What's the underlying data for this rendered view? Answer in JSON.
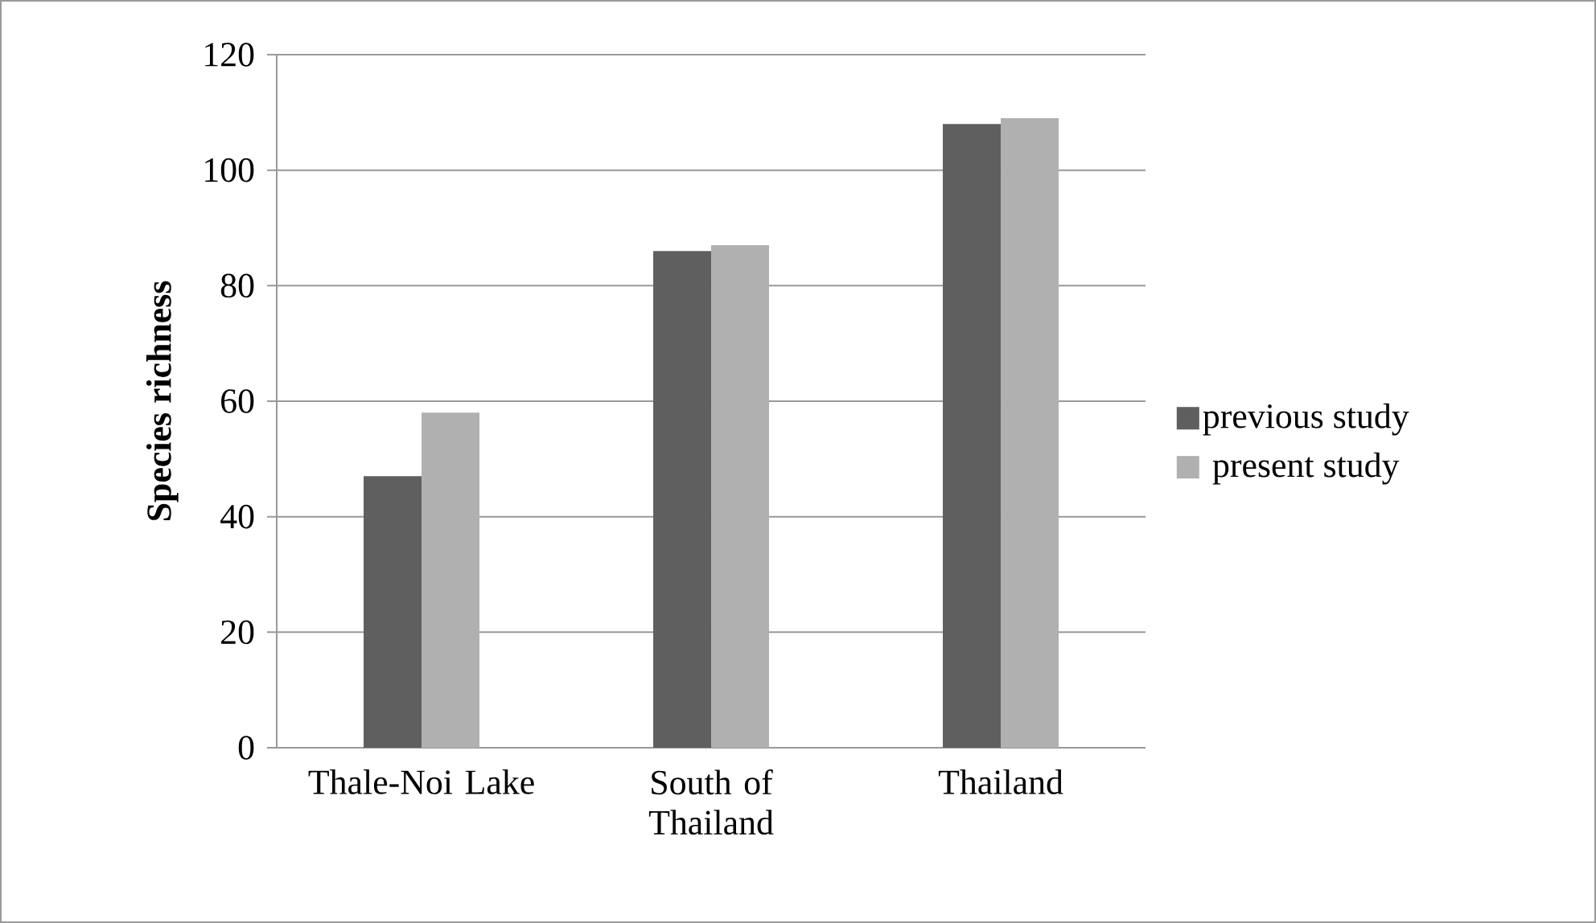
{
  "chart_data": {
    "type": "bar",
    "ylabel": "Species richness",
    "categories": [
      "Thale-Noi Lake",
      "South of Thailand",
      "Thailand"
    ],
    "series": [
      {
        "name": "previous study",
        "color": "#5f5f5f",
        "values": [
          47,
          86,
          108
        ]
      },
      {
        "name": "present study",
        "color": "#b0b0b0",
        "values": [
          58,
          87,
          109
        ]
      }
    ],
    "ylim": [
      0,
      120
    ],
    "yticks": [
      0,
      20,
      40,
      60,
      80,
      100,
      120
    ],
    "grid": "y",
    "legend": "right"
  }
}
